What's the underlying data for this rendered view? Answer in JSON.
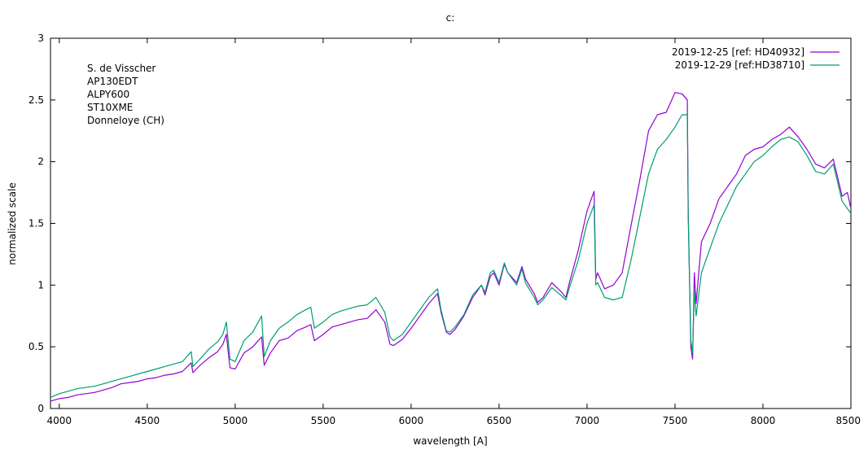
{
  "chart_data": {
    "type": "line",
    "title": "c:",
    "xlabel": "wavelength [A]",
    "ylabel": "normalized scale",
    "xlim": [
      3950,
      8500
    ],
    "ylim": [
      0,
      3
    ],
    "xticks": [
      4000,
      4500,
      5000,
      5500,
      6000,
      6500,
      7000,
      7500,
      8000,
      8500
    ],
    "yticks": [
      0,
      0.5,
      1,
      1.5,
      2,
      2.5,
      3
    ],
    "grid": false,
    "legend_position": "top-right",
    "annotations": [
      "S. de Visscher",
      "AP130EDT",
      "ALPY600",
      "ST10XME",
      "Donneloye (CH)"
    ],
    "series": [
      {
        "name": "2019-12-25 [ref: HD40932]",
        "color": "#9400d3",
        "points": [
          [
            3950,
            0.06
          ],
          [
            4000,
            0.08
          ],
          [
            4050,
            0.09
          ],
          [
            4100,
            0.11
          ],
          [
            4150,
            0.12
          ],
          [
            4200,
            0.13
          ],
          [
            4250,
            0.15
          ],
          [
            4300,
            0.17
          ],
          [
            4350,
            0.2
          ],
          [
            4400,
            0.21
          ],
          [
            4450,
            0.22
          ],
          [
            4500,
            0.24
          ],
          [
            4550,
            0.25
          ],
          [
            4600,
            0.27
          ],
          [
            4650,
            0.28
          ],
          [
            4700,
            0.3
          ],
          [
            4750,
            0.37
          ],
          [
            4760,
            0.29
          ],
          [
            4800,
            0.35
          ],
          [
            4850,
            0.41
          ],
          [
            4900,
            0.46
          ],
          [
            4930,
            0.52
          ],
          [
            4950,
            0.6
          ],
          [
            4970,
            0.33
          ],
          [
            5000,
            0.32
          ],
          [
            5050,
            0.45
          ],
          [
            5100,
            0.5
          ],
          [
            5150,
            0.58
          ],
          [
            5165,
            0.35
          ],
          [
            5200,
            0.45
          ],
          [
            5250,
            0.55
          ],
          [
            5300,
            0.57
          ],
          [
            5350,
            0.63
          ],
          [
            5400,
            0.66
          ],
          [
            5430,
            0.68
          ],
          [
            5450,
            0.55
          ],
          [
            5500,
            0.6
          ],
          [
            5550,
            0.66
          ],
          [
            5600,
            0.68
          ],
          [
            5650,
            0.7
          ],
          [
            5700,
            0.72
          ],
          [
            5750,
            0.73
          ],
          [
            5800,
            0.8
          ],
          [
            5850,
            0.7
          ],
          [
            5880,
            0.52
          ],
          [
            5900,
            0.51
          ],
          [
            5950,
            0.56
          ],
          [
            6000,
            0.65
          ],
          [
            6050,
            0.75
          ],
          [
            6100,
            0.85
          ],
          [
            6150,
            0.93
          ],
          [
            6170,
            0.78
          ],
          [
            6200,
            0.62
          ],
          [
            6220,
            0.6
          ],
          [
            6250,
            0.64
          ],
          [
            6300,
            0.75
          ],
          [
            6350,
            0.9
          ],
          [
            6400,
            1.0
          ],
          [
            6420,
            0.92
          ],
          [
            6450,
            1.07
          ],
          [
            6470,
            1.1
          ],
          [
            6500,
            1.0
          ],
          [
            6530,
            1.17
          ],
          [
            6550,
            1.1
          ],
          [
            6600,
            1.02
          ],
          [
            6630,
            1.15
          ],
          [
            6650,
            1.05
          ],
          [
            6700,
            0.93
          ],
          [
            6720,
            0.86
          ],
          [
            6750,
            0.9
          ],
          [
            6800,
            1.02
          ],
          [
            6850,
            0.95
          ],
          [
            6880,
            0.9
          ],
          [
            6900,
            1.02
          ],
          [
            6950,
            1.28
          ],
          [
            7000,
            1.6
          ],
          [
            7040,
            1.76
          ],
          [
            7050,
            1.05
          ],
          [
            7060,
            1.1
          ],
          [
            7100,
            0.97
          ],
          [
            7150,
            1.0
          ],
          [
            7200,
            1.1
          ],
          [
            7250,
            1.48
          ],
          [
            7300,
            1.85
          ],
          [
            7350,
            2.25
          ],
          [
            7400,
            2.38
          ],
          [
            7450,
            2.4
          ],
          [
            7500,
            2.56
          ],
          [
            7540,
            2.55
          ],
          [
            7570,
            2.5
          ],
          [
            7575,
            1.6
          ],
          [
            7590,
            0.5
          ],
          [
            7600,
            0.4
          ],
          [
            7610,
            1.1
          ],
          [
            7620,
            0.85
          ],
          [
            7650,
            1.35
          ],
          [
            7700,
            1.5
          ],
          [
            7750,
            1.7
          ],
          [
            7800,
            1.8
          ],
          [
            7850,
            1.9
          ],
          [
            7900,
            2.05
          ],
          [
            7950,
            2.1
          ],
          [
            8000,
            2.12
          ],
          [
            8050,
            2.18
          ],
          [
            8100,
            2.22
          ],
          [
            8150,
            2.28
          ],
          [
            8200,
            2.2
          ],
          [
            8250,
            2.1
          ],
          [
            8300,
            1.98
          ],
          [
            8350,
            1.95
          ],
          [
            8400,
            2.02
          ],
          [
            8450,
            1.72
          ],
          [
            8480,
            1.75
          ],
          [
            8500,
            1.62
          ]
        ]
      },
      {
        "name": "2019-12-29 [ref:HD38710]",
        "color": "#009e73",
        "points": [
          [
            3950,
            0.09
          ],
          [
            4000,
            0.12
          ],
          [
            4050,
            0.14
          ],
          [
            4100,
            0.16
          ],
          [
            4150,
            0.17
          ],
          [
            4200,
            0.18
          ],
          [
            4250,
            0.2
          ],
          [
            4300,
            0.22
          ],
          [
            4350,
            0.24
          ],
          [
            4400,
            0.26
          ],
          [
            4450,
            0.28
          ],
          [
            4500,
            0.3
          ],
          [
            4550,
            0.32
          ],
          [
            4600,
            0.34
          ],
          [
            4650,
            0.36
          ],
          [
            4700,
            0.38
          ],
          [
            4750,
            0.46
          ],
          [
            4760,
            0.34
          ],
          [
            4800,
            0.4
          ],
          [
            4850,
            0.48
          ],
          [
            4900,
            0.54
          ],
          [
            4930,
            0.6
          ],
          [
            4950,
            0.7
          ],
          [
            4970,
            0.4
          ],
          [
            5000,
            0.38
          ],
          [
            5050,
            0.55
          ],
          [
            5100,
            0.62
          ],
          [
            5150,
            0.75
          ],
          [
            5165,
            0.42
          ],
          [
            5200,
            0.55
          ],
          [
            5250,
            0.65
          ],
          [
            5300,
            0.7
          ],
          [
            5350,
            0.76
          ],
          [
            5400,
            0.8
          ],
          [
            5430,
            0.82
          ],
          [
            5450,
            0.65
          ],
          [
            5500,
            0.7
          ],
          [
            5550,
            0.76
          ],
          [
            5600,
            0.79
          ],
          [
            5650,
            0.81
          ],
          [
            5700,
            0.83
          ],
          [
            5750,
            0.84
          ],
          [
            5800,
            0.9
          ],
          [
            5850,
            0.78
          ],
          [
            5880,
            0.58
          ],
          [
            5900,
            0.55
          ],
          [
            5950,
            0.6
          ],
          [
            6000,
            0.7
          ],
          [
            6050,
            0.8
          ],
          [
            6100,
            0.9
          ],
          [
            6150,
            0.97
          ],
          [
            6170,
            0.8
          ],
          [
            6200,
            0.63
          ],
          [
            6220,
            0.62
          ],
          [
            6250,
            0.66
          ],
          [
            6300,
            0.76
          ],
          [
            6350,
            0.92
          ],
          [
            6400,
            1.0
          ],
          [
            6420,
            0.94
          ],
          [
            6450,
            1.1
          ],
          [
            6470,
            1.12
          ],
          [
            6500,
            1.02
          ],
          [
            6530,
            1.18
          ],
          [
            6550,
            1.1
          ],
          [
            6600,
            1.0
          ],
          [
            6630,
            1.13
          ],
          [
            6650,
            1.02
          ],
          [
            6700,
            0.9
          ],
          [
            6720,
            0.84
          ],
          [
            6750,
            0.88
          ],
          [
            6800,
            0.98
          ],
          [
            6850,
            0.92
          ],
          [
            6880,
            0.88
          ],
          [
            6900,
            0.98
          ],
          [
            6950,
            1.2
          ],
          [
            7000,
            1.5
          ],
          [
            7040,
            1.65
          ],
          [
            7050,
            1.0
          ],
          [
            7060,
            1.02
          ],
          [
            7100,
            0.9
          ],
          [
            7150,
            0.88
          ],
          [
            7200,
            0.9
          ],
          [
            7250,
            1.2
          ],
          [
            7300,
            1.55
          ],
          [
            7350,
            1.9
          ],
          [
            7400,
            2.1
          ],
          [
            7450,
            2.18
          ],
          [
            7500,
            2.28
          ],
          [
            7540,
            2.38
          ],
          [
            7570,
            2.38
          ],
          [
            7575,
            1.55
          ],
          [
            7590,
            0.55
          ],
          [
            7600,
            0.45
          ],
          [
            7610,
            0.95
          ],
          [
            7620,
            0.75
          ],
          [
            7650,
            1.1
          ],
          [
            7700,
            1.3
          ],
          [
            7750,
            1.5
          ],
          [
            7800,
            1.65
          ],
          [
            7850,
            1.8
          ],
          [
            7900,
            1.9
          ],
          [
            7950,
            2.0
          ],
          [
            8000,
            2.05
          ],
          [
            8050,
            2.12
          ],
          [
            8100,
            2.18
          ],
          [
            8150,
            2.2
          ],
          [
            8200,
            2.16
          ],
          [
            8250,
            2.05
          ],
          [
            8300,
            1.92
          ],
          [
            8350,
            1.9
          ],
          [
            8400,
            1.98
          ],
          [
            8450,
            1.68
          ],
          [
            8480,
            1.62
          ],
          [
            8500,
            1.58
          ]
        ]
      }
    ]
  }
}
